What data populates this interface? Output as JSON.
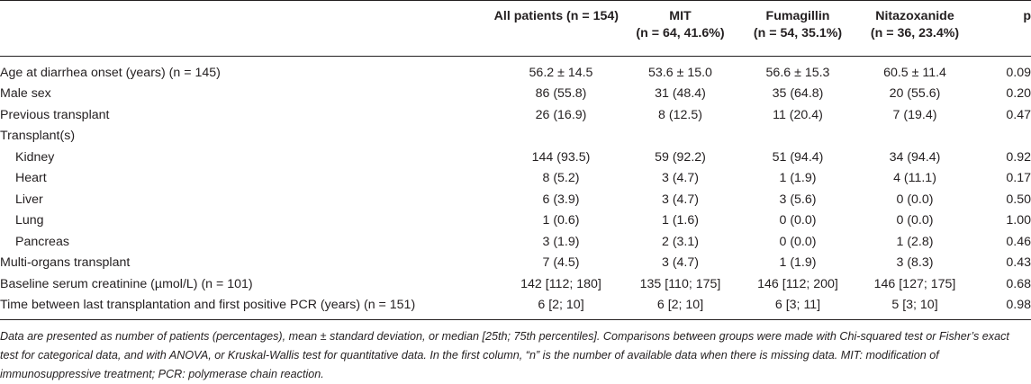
{
  "table": {
    "headers": [
      {
        "line1": "",
        "line2": ""
      },
      {
        "line1": "All patients (n = 154)",
        "line2": ""
      },
      {
        "line1": "MIT",
        "line2": "(n = 64, 41.6%)"
      },
      {
        "line1": "Fumagillin",
        "line2": "(n = 54, 35.1%)"
      },
      {
        "line1": "Nitazoxanide",
        "line2": "(n = 36, 23.4%)"
      },
      {
        "line1": "p",
        "line2": ""
      }
    ],
    "rows": [
      {
        "label": "Age at diarrhea onset (years) (n = 145)",
        "all": "56.2 ± 14.5",
        "mit": "53.6 ± 15.0",
        "fum": "56.6 ± 15.3",
        "nit": "60.5 ± 11.4",
        "p": "0.09"
      },
      {
        "label": "Male sex",
        "all": "86 (55.8)",
        "mit": "31 (48.4)",
        "fum": "35 (64.8)",
        "nit": "20 (55.6)",
        "p": "0.20"
      },
      {
        "label": "Previous transplant",
        "all": "26 (16.9)",
        "mit": "8 (12.5)",
        "fum": "11 (20.4)",
        "nit": "7 (19.4)",
        "p": "0.47"
      },
      {
        "label": "Transplant(s)",
        "all": "",
        "mit": "",
        "fum": "",
        "nit": "",
        "p": ""
      },
      {
        "label": "Kidney",
        "all": "144 (93.5)",
        "mit": "59 (92.2)",
        "fum": "51 (94.4)",
        "nit": "34 (94.4)",
        "p": "0.92"
      },
      {
        "label": "Heart",
        "all": "8 (5.2)",
        "mit": "3 (4.7)",
        "fum": "1 (1.9)",
        "nit": "4 (11.1)",
        "p": "0.17"
      },
      {
        "label": "Liver",
        "all": "6 (3.9)",
        "mit": "3 (4.7)",
        "fum": "3 (5.6)",
        "nit": "0 (0.0)",
        "p": "0.50"
      },
      {
        "label": "Lung",
        "all": "1 (0.6)",
        "mit": "1 (1.6)",
        "fum": "0 (0.0)",
        "nit": "0 (0.0)",
        "p": "1.00"
      },
      {
        "label": "Pancreas",
        "all": "3 (1.9)",
        "mit": "2 (3.1)",
        "fum": "0 (0.0)",
        "nit": "1 (2.8)",
        "p": "0.46"
      },
      {
        "label": "Multi-organs transplant",
        "all": "7 (4.5)",
        "mit": "3 (4.7)",
        "fum": "1 (1.9)",
        "nit": "3 (8.3)",
        "p": "0.43"
      },
      {
        "label": "Baseline serum creatinine (µmol/L) (n = 101)",
        "all": "142 [112; 180]",
        "mit": "135 [110; 175]",
        "fum": "146 [112; 200]",
        "nit": "146 [127; 175]",
        "p": "0.68"
      },
      {
        "label": "Time between last transplantation and first positive PCR (years) (n = 151)",
        "all": "6 [2; 10]",
        "mit": "6 [2; 10]",
        "fum": "6 [3; 11]",
        "nit": "5 [3; 10]",
        "p": "0.98"
      }
    ]
  },
  "footnote": "Data are presented as number of patients (percentages), mean ± standard deviation, or median [25th; 75th percentiles]. Comparisons between groups were made with Chi-squared test or Fisher’s exact test for categorical data, and with ANOVA, or Kruskal-Wallis test for quantitative data. In the first column, “n” is the number of available data when there is missing data. MIT: modification of immunosuppressive treatment; PCR: polymerase chain reaction."
}
